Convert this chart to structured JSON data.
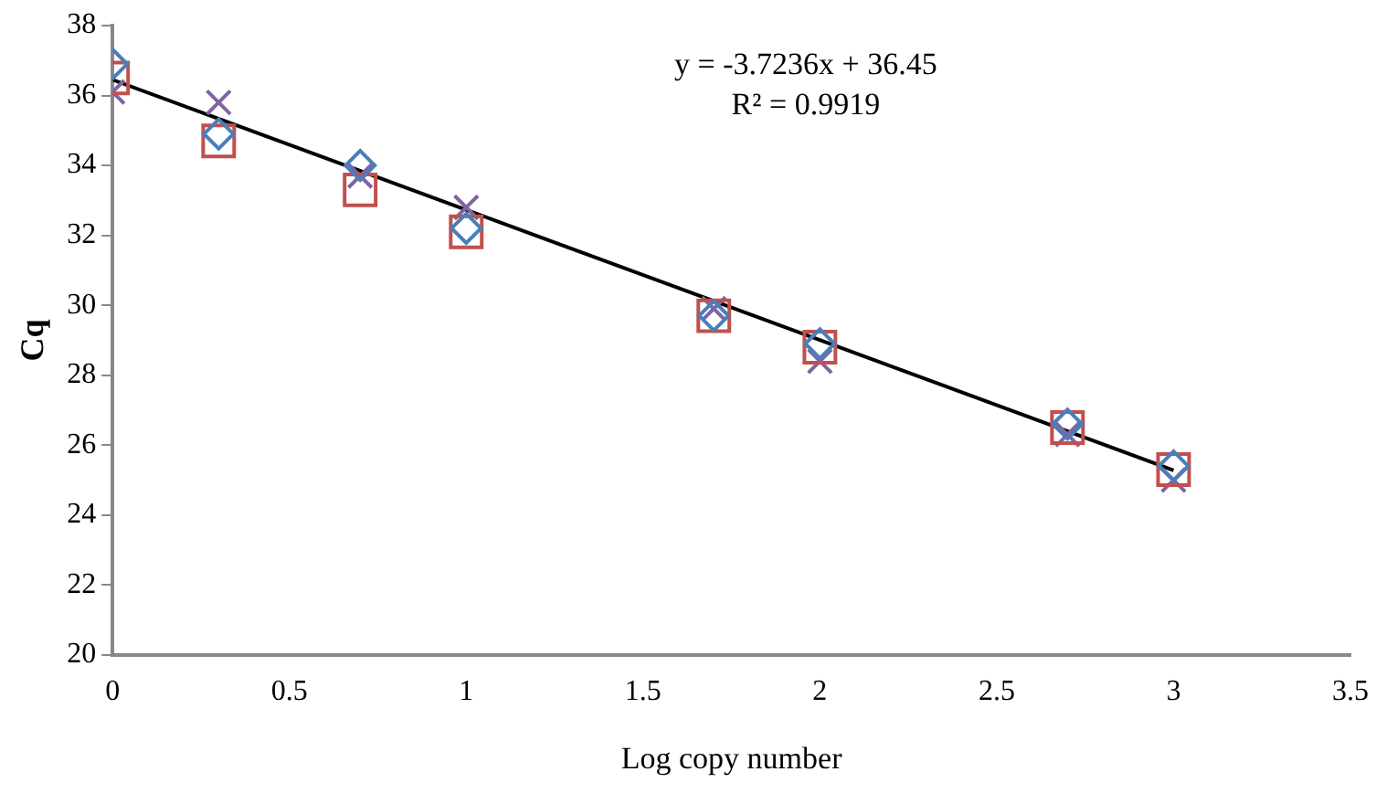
{
  "chart_data": {
    "type": "scatter",
    "xlabel": "Log copy number",
    "ylabel": "Cq",
    "xlim": [
      0,
      3.5
    ],
    "xticks": [
      0,
      0.5,
      1,
      1.5,
      2,
      2.5,
      3,
      3.5
    ],
    "ylim": [
      20,
      38
    ],
    "yticks": [
      20,
      22,
      24,
      26,
      28,
      30,
      32,
      34,
      36,
      38
    ],
    "grid": false,
    "legend": false,
    "annotations": [
      "y = -3.7236x + 36.45",
      "R² = 0.9919"
    ],
    "x": [
      0,
      0.3,
      0.7,
      1,
      1.7,
      2,
      2.7,
      3
    ],
    "series": [
      {
        "color": "#4a7ebb",
        "marker": "diamond",
        "values": [
          36.9,
          34.9,
          34.0,
          32.2,
          29.7,
          28.9,
          26.6,
          25.4
        ]
      },
      {
        "color": "#c0504d",
        "marker": "square",
        "values": [
          36.5,
          34.7,
          33.3,
          32.1,
          29.7,
          28.8,
          26.5,
          25.3
        ]
      },
      {
        "color": "#8064a2",
        "marker": "cross",
        "values": [
          36.1,
          35.8,
          33.7,
          32.8,
          29.9,
          28.4,
          26.3,
          25.0
        ]
      },
      {
        "type": "line",
        "color": "#000000",
        "marker": "none",
        "x": [
          0,
          3
        ],
        "values": [
          36.45,
          25.28
        ]
      }
    ]
  }
}
